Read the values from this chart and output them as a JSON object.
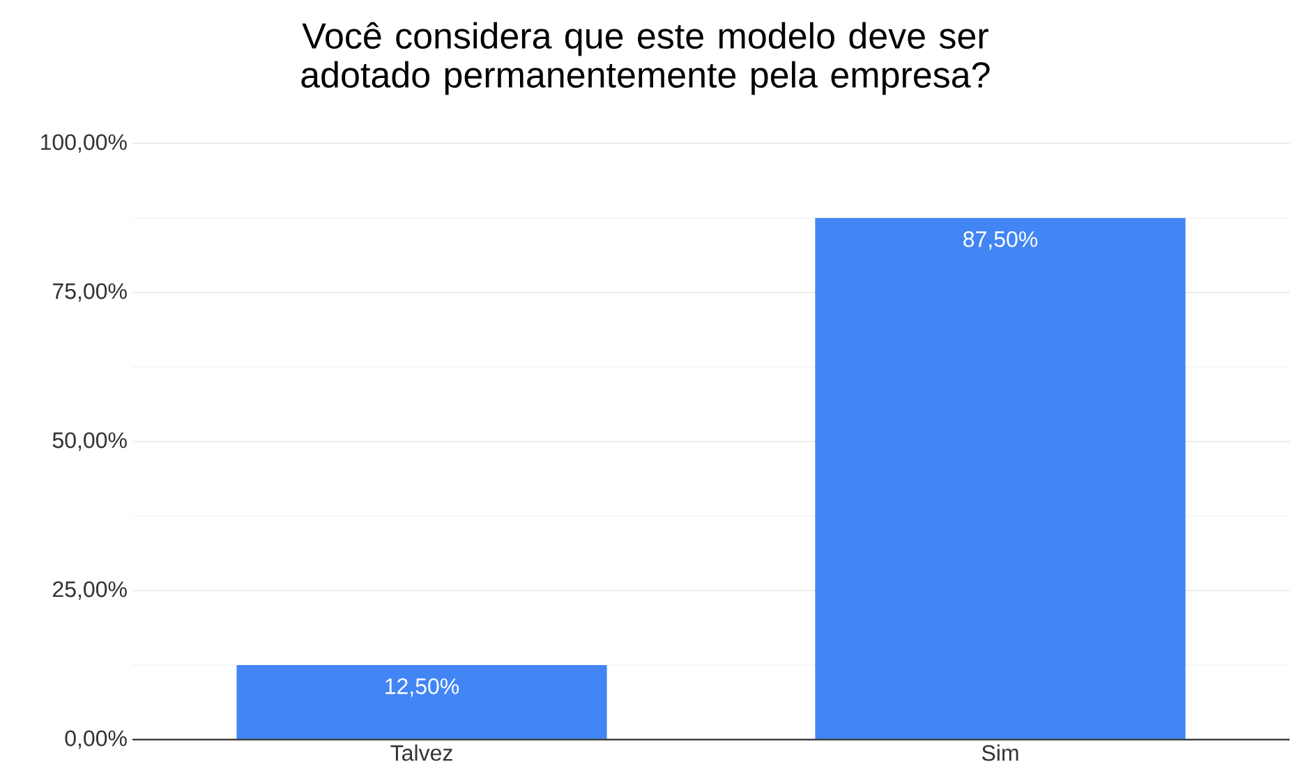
{
  "chart_data": {
    "type": "bar",
    "title": "Você considera que este modelo deve ser adotado permanentemente pela empresa?",
    "categories": [
      "Talvez",
      "Sim"
    ],
    "values": [
      12.5,
      87.5
    ],
    "value_labels": [
      "12,50%",
      "87,50%"
    ],
    "color": "#4285f4",
    "ylim": [
      0,
      100
    ],
    "yticks": [
      {
        "value": 0,
        "label": "0,00%"
      },
      {
        "value": 12.5,
        "label": null
      },
      {
        "value": 25,
        "label": "25,00%"
      },
      {
        "value": 37.5,
        "label": null
      },
      {
        "value": 50,
        "label": "50,00%"
      },
      {
        "value": 62.5,
        "label": null
      },
      {
        "value": 75,
        "label": "75,00%"
      },
      {
        "value": 87.5,
        "label": null
      },
      {
        "value": 100,
        "label": "100,00%"
      }
    ],
    "grid": "y"
  }
}
